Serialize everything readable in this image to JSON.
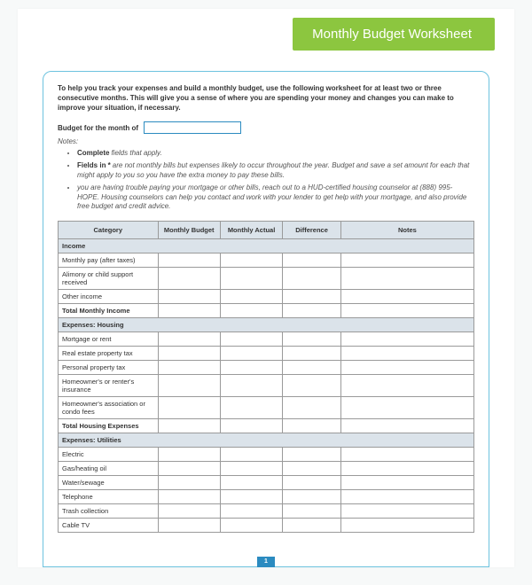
{
  "header": {
    "title": "Monthly Budget Worksheet"
  },
  "intro": "To help you track your expenses and build a monthly budget, use the following worksheet for at least two or three consecutive months. This will give you a sense of where you are spending your money and changes you can make to improve your situation, if necessary.",
  "month_label": "Budget for the month of",
  "month_value": "",
  "notes_label": "Notes:",
  "notes": [
    {
      "lead": "Complete",
      "rest": "fields that apply."
    },
    {
      "lead": "Fields in *",
      "rest": "are not monthly bills but expenses likely to occur throughout the year. Budget and save a set amount for each that might apply to you so you have the extra money to pay these bills."
    },
    {
      "lead": "",
      "rest": "you are having trouble paying your mortgage or other bills, reach out to a HUD-certified housing counselor at (888) 995-HOPE. Housing counselors can help you contact and work with your lender to get help with your mortgage, and also provide free budget and credit advice."
    }
  ],
  "table": {
    "columns": [
      "Category",
      "Monthly Budget",
      "Monthly Actual",
      "Difference",
      "Notes"
    ],
    "rows": [
      {
        "type": "section",
        "label": "Income"
      },
      {
        "type": "row",
        "label": "Monthly pay (after taxes)"
      },
      {
        "type": "row",
        "label": "Alimony or child support received"
      },
      {
        "type": "row",
        "label": "Other income"
      },
      {
        "type": "total",
        "label": "Total Monthly Income"
      },
      {
        "type": "section",
        "label": "Expenses: Housing"
      },
      {
        "type": "row",
        "label": "Mortgage or rent"
      },
      {
        "type": "row",
        "label": "Real estate property tax"
      },
      {
        "type": "row",
        "label": "Personal property tax"
      },
      {
        "type": "row",
        "label": "Homeowner's or renter's insurance"
      },
      {
        "type": "row",
        "label": "Homeowner's association or condo fees"
      },
      {
        "type": "total",
        "label": "Total Housing Expenses"
      },
      {
        "type": "section",
        "label": "Expenses: Utilities"
      },
      {
        "type": "row",
        "label": "Electric"
      },
      {
        "type": "row",
        "label": "Gas/heating oil"
      },
      {
        "type": "row",
        "label": "Water/sewage"
      },
      {
        "type": "row",
        "label": "Telephone"
      },
      {
        "type": "row",
        "label": "Trash collection"
      },
      {
        "type": "row",
        "label": "Cable TV"
      }
    ]
  },
  "page_number": "1",
  "colors": {
    "accent_green": "#8cc63f",
    "frame_blue": "#6dc3df",
    "input_border": "#2b8bc0",
    "table_header_bg": "#dbe3ea",
    "table_border": "#9a9a9a"
  }
}
